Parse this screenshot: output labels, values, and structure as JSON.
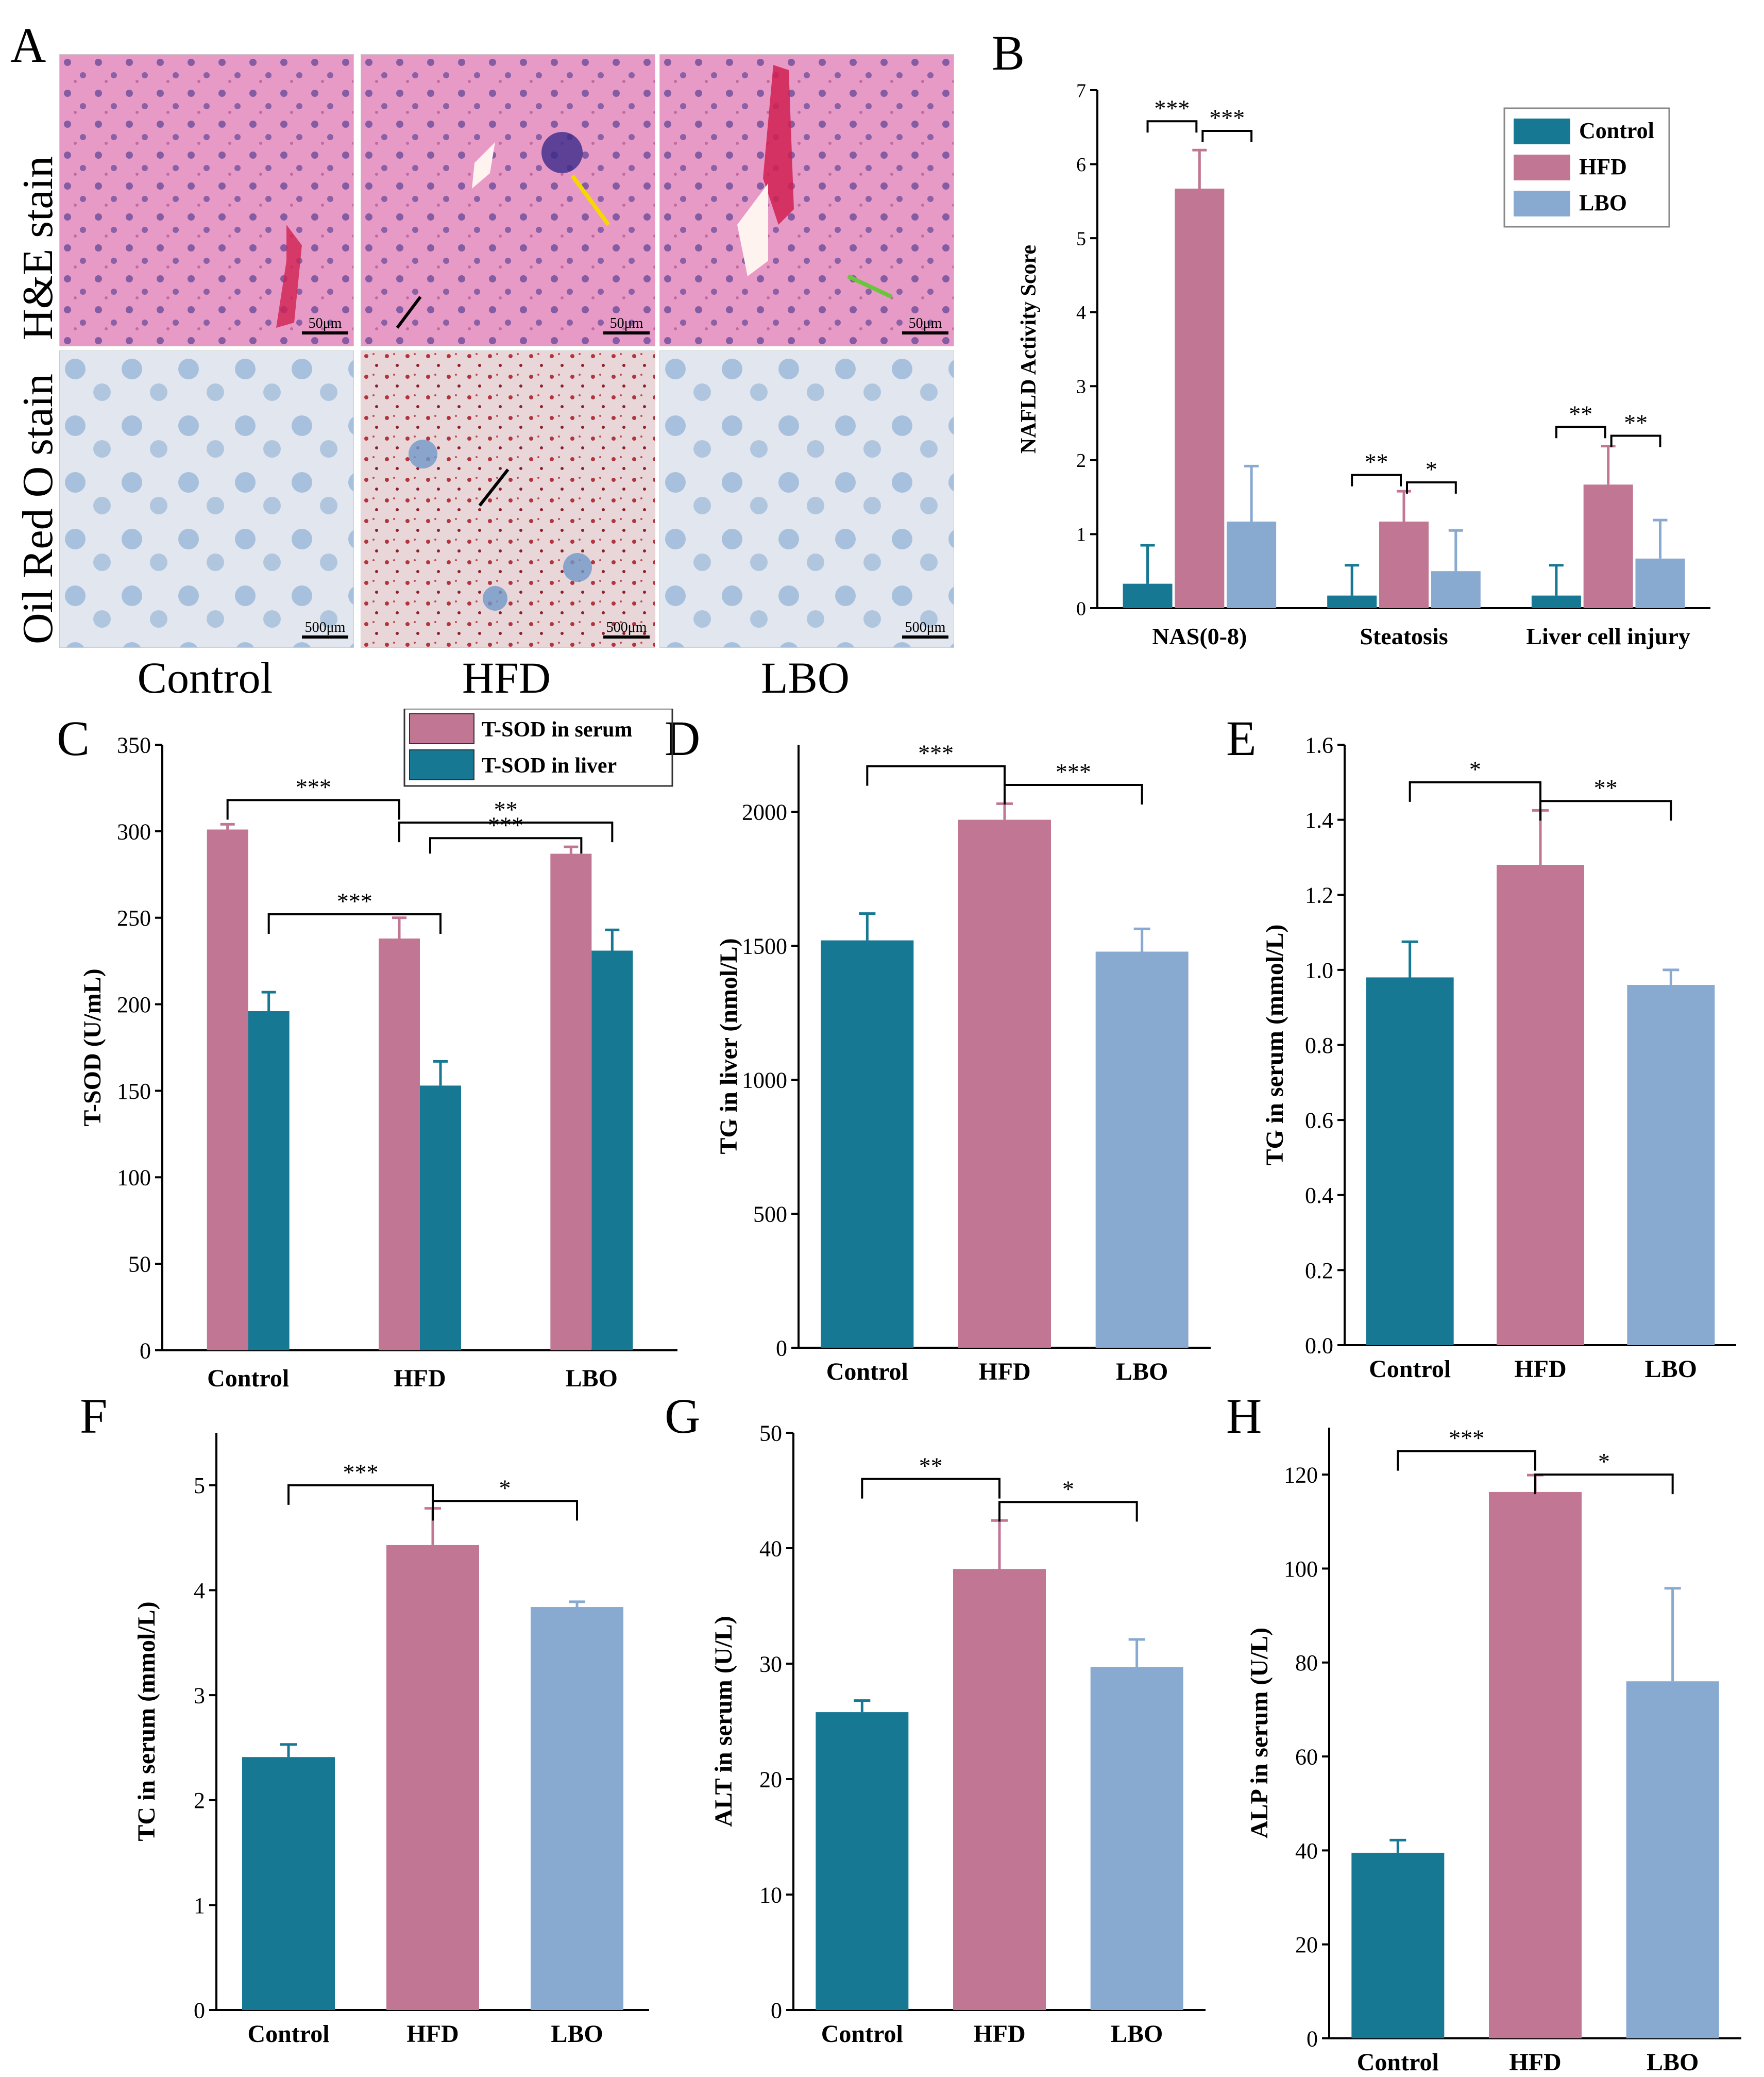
{
  "colors": {
    "control": "#167893",
    "hfd": "#c17693",
    "lbo": "#88a9d0",
    "he_bg": "#e39bc6",
    "oil_bg": "#dfe3ea"
  },
  "panel_letters": [
    "A",
    "B",
    "C",
    "D",
    "E",
    "F",
    "G",
    "H"
  ],
  "panel_a": {
    "row_labels": [
      "H&E stain",
      "Oil Red O stain"
    ],
    "col_labels": [
      "Control",
      "HFD",
      "LBO"
    ],
    "he_scale": "50μm",
    "oil_scale": "500μm"
  },
  "chart_data": [
    {
      "id": "B",
      "type": "bar",
      "title": "",
      "xlabel": "",
      "ylabel": "NAFLD Activity Score",
      "ylim": [
        0,
        7
      ],
      "yticks": [
        "0",
        "1",
        "2",
        "3",
        "4",
        "5",
        "6",
        "7"
      ],
      "categories": [
        "NAS(0-8)",
        "Steatosis",
        "Liver cell injury"
      ],
      "legend": {
        "position": "top-right",
        "entries": [
          "Control",
          "HFD",
          "LBO"
        ]
      },
      "series": [
        {
          "name": "Control",
          "values": [
            0.33,
            0.17,
            0.17
          ],
          "errors": [
            0.52,
            0.41,
            0.41
          ]
        },
        {
          "name": "HFD",
          "values": [
            5.67,
            1.17,
            1.67
          ],
          "errors": [
            0.52,
            0.41,
            0.52
          ]
        },
        {
          "name": "LBO",
          "values": [
            1.17,
            0.5,
            0.67
          ],
          "errors": [
            0.75,
            0.55,
            0.52
          ]
        }
      ],
      "significance": [
        "***",
        "***",
        "**",
        "*",
        "**",
        "**"
      ]
    },
    {
      "id": "C",
      "type": "bar",
      "title": "",
      "xlabel": "",
      "ylabel": "T-SOD (U/mL)",
      "ylim": [
        0,
        350
      ],
      "yticks": [
        "0",
        "50",
        "100",
        "150",
        "200",
        "250",
        "300",
        "350"
      ],
      "categories": [
        "Control",
        "HFD",
        "LBO"
      ],
      "legend": {
        "position": "top-right",
        "entries": [
          "T-SOD in serum",
          "T-SOD in liver"
        ]
      },
      "series": [
        {
          "name": "T-SOD in serum",
          "values": [
            301,
            238,
            287
          ],
          "errors": [
            3,
            12,
            4
          ]
        },
        {
          "name": "T-SOD in liver",
          "values": [
            196,
            153,
            231
          ],
          "errors": [
            11,
            14,
            12
          ]
        }
      ],
      "significance": [
        "***",
        "**",
        "***",
        "***"
      ]
    },
    {
      "id": "D",
      "type": "bar",
      "title": "",
      "xlabel": "",
      "ylabel": "TG in liver (nmol/L)",
      "ylim": [
        0,
        2250
      ],
      "yticks": [
        "0",
        "500",
        "1000",
        "1500",
        "2000"
      ],
      "categories": [
        "Control",
        "HFD",
        "LBO"
      ],
      "values": [
        1520,
        1970,
        1478
      ],
      "errors": [
        100,
        60,
        85
      ],
      "significance": [
        "***",
        "***"
      ]
    },
    {
      "id": "E",
      "type": "bar",
      "title": "",
      "xlabel": "",
      "ylabel": "TG in serum (mmol/L)",
      "ylim": [
        0,
        1.6
      ],
      "yticks": [
        "0.0",
        "0.2",
        "0.4",
        "0.6",
        "0.8",
        "1.0",
        "1.2",
        "1.4",
        "1.6"
      ],
      "categories": [
        "Control",
        "HFD",
        "LBO"
      ],
      "values": [
        0.98,
        1.28,
        0.96
      ],
      "errors": [
        0.095,
        0.145,
        0.04
      ],
      "significance": [
        "*",
        "**"
      ]
    },
    {
      "id": "F",
      "type": "bar",
      "title": "",
      "xlabel": "",
      "ylabel": "TC in serum (mmol/L)",
      "ylim": [
        0,
        5.5
      ],
      "yticks": [
        "0",
        "1",
        "2",
        "3",
        "4",
        "5"
      ],
      "categories": [
        "Control",
        "HFD",
        "LBO"
      ],
      "values": [
        2.41,
        4.43,
        3.84
      ],
      "errors": [
        0.12,
        0.35,
        0.05
      ],
      "significance": [
        "***",
        "*"
      ]
    },
    {
      "id": "G",
      "type": "bar",
      "title": "",
      "xlabel": "",
      "ylabel": "ALT in serum  (U/L)",
      "ylim": [
        0,
        50
      ],
      "yticks": [
        "0",
        "10",
        "20",
        "30",
        "40",
        "50"
      ],
      "categories": [
        "Control",
        "HFD",
        "LBO"
      ],
      "values": [
        25.8,
        38.2,
        29.7
      ],
      "errors": [
        1,
        4.2,
        2.4
      ],
      "significance": [
        "**",
        "*"
      ]
    },
    {
      "id": "H",
      "type": "bar",
      "title": "",
      "xlabel": "",
      "ylabel": "ALP in serum (U/L)",
      "ylim": [
        0,
        130
      ],
      "yticks": [
        "0",
        "20",
        "40",
        "60",
        "80",
        "100",
        "120"
      ],
      "categories": [
        "Control",
        "HFD",
        "LBO"
      ],
      "values": [
        39.5,
        116.3,
        76
      ],
      "errors": [
        2.7,
        3.6,
        19.8
      ],
      "significance": [
        "***",
        "*"
      ]
    }
  ]
}
